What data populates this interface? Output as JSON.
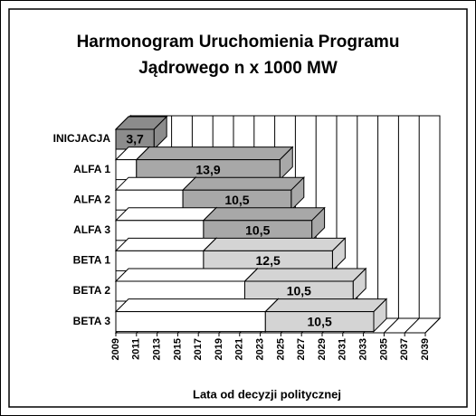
{
  "chart_data": {
    "type": "bar3d_stacked_horizontal",
    "title": "Harmonogram Uruchomienia Programu",
    "subtitle": "Jądrowego n x 1000 MW",
    "x_label": "Lata od decyzji politycznej",
    "categories": [
      "INICJACJA",
      "ALFA  1",
      "ALFA  2",
      "ALFA  3",
      "BETA 1",
      "BETA  2",
      "BETA  3"
    ],
    "series": [
      {
        "color": "#ffffff",
        "values": [
          0,
          2,
          6.5,
          8.5,
          8.5,
          12.5,
          14.5
        ]
      },
      {
        "colors": [
          "#8c8c8c",
          "#a8a8a8",
          "#a8a8a8",
          "#a8a8a8",
          "#d4d4d4",
          "#d4d4d4",
          "#d4d4d4"
        ],
        "values": [
          3.7,
          13.9,
          10.5,
          10.5,
          12.5,
          10.5,
          10.5
        ],
        "value_labels": [
          "3,7",
          "13,9",
          "10,5",
          "10,5",
          "12,5",
          "10,5",
          "10,5"
        ]
      }
    ],
    "xlim": [
      2009,
      2039
    ],
    "xticks": [
      2009,
      2011,
      2013,
      2015,
      2017,
      2019,
      2021,
      2023,
      2025,
      2027,
      2029,
      2031,
      2033,
      2035,
      2037,
      2039
    ],
    "grid": true
  }
}
